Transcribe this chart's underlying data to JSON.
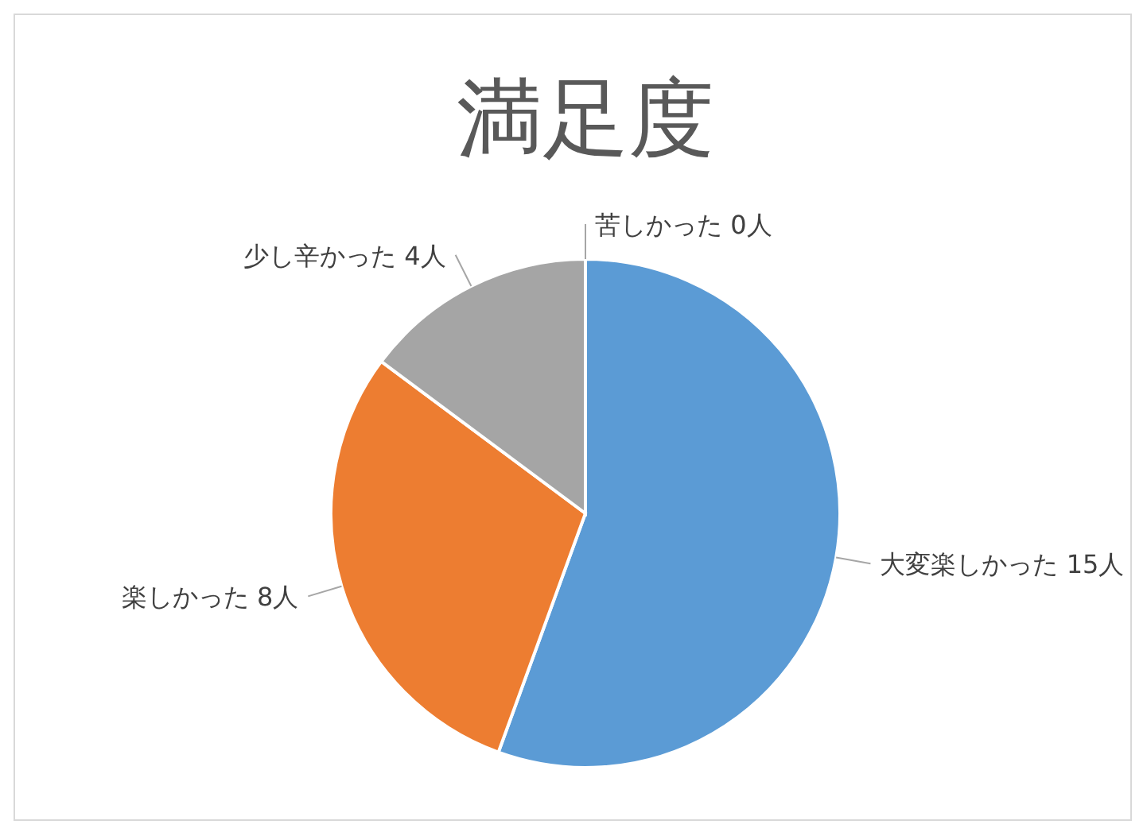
{
  "chart_data": {
    "type": "pie",
    "title": "満足度",
    "categories": [
      "大変楽しかった",
      "楽しかった",
      "少し辛かった",
      "苦しかった"
    ],
    "values": [
      15,
      8,
      4,
      0
    ],
    "colors": [
      "#5b9bd5",
      "#ed7d31",
      "#a5a5a5",
      "#ffc000"
    ],
    "value_labels": [
      "15人",
      "8人",
      "4人",
      "0人"
    ]
  }
}
